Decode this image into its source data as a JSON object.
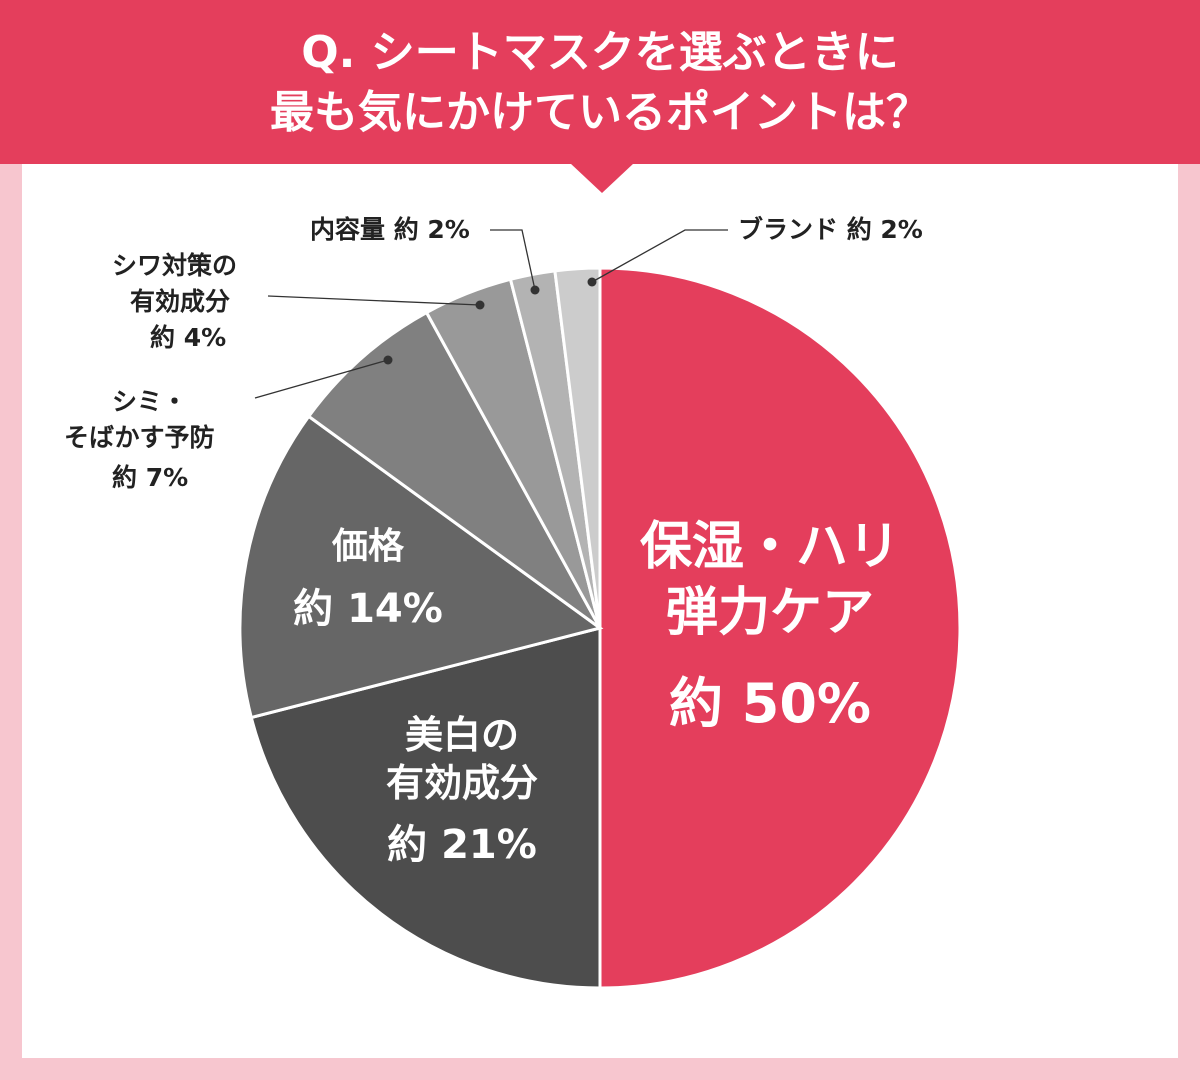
{
  "title": {
    "line1": "Q. シートマスクを選ぶときに",
    "line2": "最も気にかけているポイントは？"
  },
  "colors": {
    "header": "#e43e5c",
    "background": "#f7c6cf",
    "panel": "#ffffff"
  },
  "chart_data": {
    "type": "pie",
    "slices": [
      {
        "name": "保湿・ハリ弾力ケア",
        "label_lines": [
          "保湿・ハリ",
          "弾力ケア"
        ],
        "value": 50,
        "value_label": "約 50%",
        "color": "#e43e5c",
        "label_placement": "inside"
      },
      {
        "name": "美白の有効成分",
        "label_lines": [
          "美白の",
          "有効成分"
        ],
        "value": 21,
        "value_label": "約 21%",
        "color": "#4d4d4d",
        "label_placement": "inside"
      },
      {
        "name": "価格",
        "label_lines": [
          "価格"
        ],
        "value": 14,
        "value_label": "約 14%",
        "color": "#666666",
        "label_placement": "inside"
      },
      {
        "name": "シミ・そばかす予防",
        "label_lines": [
          "シミ・",
          "そばかす予防"
        ],
        "value": 7,
        "value_label": "約 7%",
        "color": "#808080",
        "label_placement": "outside"
      },
      {
        "name": "シワ対策の有効成分",
        "label_lines": [
          "シワ対策の",
          "有効成分"
        ],
        "value": 4,
        "value_label": "約 4%",
        "color": "#999999",
        "label_placement": "outside"
      },
      {
        "name": "内容量",
        "label_lines": [
          "内容量 約 2%"
        ],
        "value": 2,
        "value_label": "",
        "color": "#b3b3b3",
        "label_placement": "outside"
      },
      {
        "name": "ブランド",
        "label_lines": [
          "ブランド 約 2%"
        ],
        "value": 2,
        "value_label": "",
        "color": "#cccccc",
        "label_placement": "outside"
      }
    ]
  }
}
